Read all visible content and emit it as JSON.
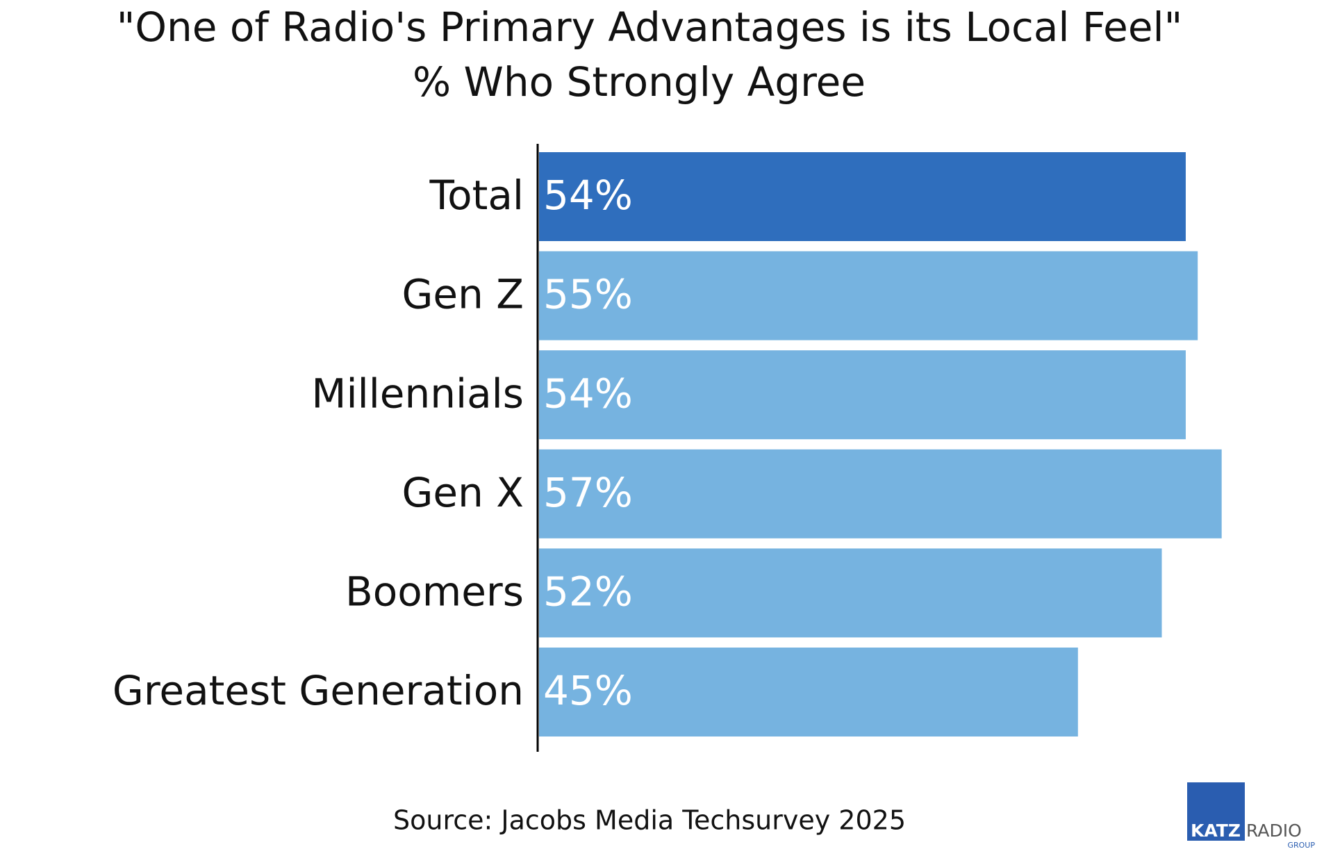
{
  "chart_data": {
    "type": "bar",
    "orientation": "horizontal",
    "title": "\"One of Radio's Primary Advantages is its Local Feel\"",
    "subtitle": "% Who Strongly Agree",
    "categories": [
      "Total",
      "Gen Z",
      "Millennials",
      "Gen X",
      "Boomers",
      "Greatest Generation"
    ],
    "values": [
      54,
      55,
      54,
      57,
      52,
      45
    ],
    "value_labels": [
      "54%",
      "55%",
      "54%",
      "57%",
      "52%",
      "45%"
    ],
    "colors": [
      "#2f6ebd",
      "#76b3e0",
      "#76b3e0",
      "#76b3e0",
      "#76b3e0",
      "#76b3e0"
    ],
    "source": "Source: Jacobs Media Techsurvey 2025"
  },
  "logo": {
    "brand": "KATZ",
    "name": "RADIO",
    "group": "GROUP"
  }
}
